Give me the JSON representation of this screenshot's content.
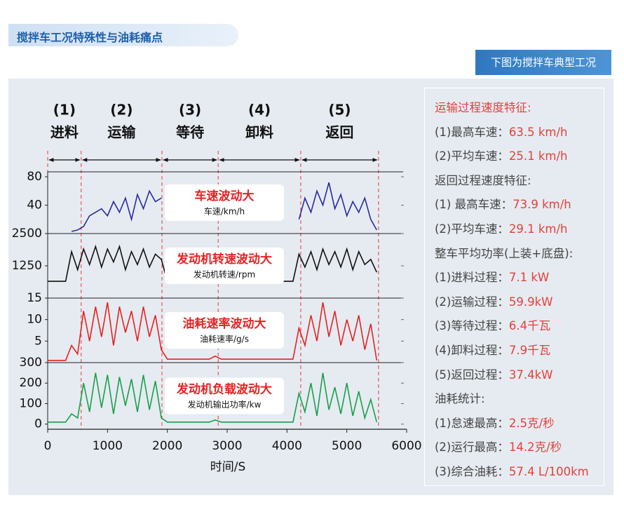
{
  "header": {
    "title": "搅拌车工况特殊性与油耗痛点",
    "banner": "下图为搅拌车典型工况"
  },
  "phases": [
    {
      "number": "(1)",
      "name": "进料"
    },
    {
      "number": "(2)",
      "name": "运输"
    },
    {
      "number": "(3)",
      "name": "等待"
    },
    {
      "number": "(4)",
      "name": "卸料"
    },
    {
      "number": "(5)",
      "name": "返回"
    }
  ],
  "phase_bounds": [
    0,
    560,
    1910,
    2850,
    4230,
    5530
  ],
  "chart_data": [
    {
      "type": "line",
      "title": "车速波动大",
      "subtitle": "车速/km/h",
      "color": "#2a2aa0",
      "xlim": [
        0,
        6000
      ],
      "ylim": [
        0,
        87
      ],
      "yticks": [
        40,
        80
      ],
      "x": [
        0,
        100,
        200,
        300,
        400,
        500,
        600,
        700,
        800,
        900,
        1000,
        1100,
        1200,
        1300,
        1400,
        1500,
        1600,
        1700,
        1800,
        1900,
        2000,
        2100,
        2200,
        2300,
        2400,
        2500,
        2600,
        2700,
        2800,
        2900,
        3000,
        3100,
        3200,
        3300,
        3400,
        3500,
        3600,
        3700,
        3800,
        3900,
        4000,
        4100,
        4200,
        4300,
        4400,
        4500,
        4600,
        4700,
        4800,
        4900,
        5000,
        5100,
        5200,
        5300,
        5400,
        5500
      ],
      "values": [
        null,
        null,
        null,
        null,
        3,
        5,
        10,
        25,
        30,
        35,
        25,
        45,
        30,
        50,
        20,
        55,
        35,
        60,
        45,
        50,
        null,
        null,
        null,
        null,
        null,
        null,
        null,
        null,
        null,
        null,
        null,
        null,
        null,
        null,
        null,
        null,
        null,
        null,
        null,
        null,
        null,
        null,
        20,
        50,
        30,
        60,
        40,
        72,
        35,
        55,
        25,
        45,
        30,
        50,
        20,
        5
      ]
    },
    {
      "type": "line",
      "title": "发动机转速波动大",
      "subtitle": "发动机转速/rpm",
      "color": "#111111",
      "xlim": [
        0,
        6000
      ],
      "ylim": [
        0,
        2500
      ],
      "yticks": [
        1250,
        2500
      ],
      "x": [
        0,
        100,
        200,
        300,
        400,
        500,
        600,
        700,
        800,
        900,
        1000,
        1100,
        1200,
        1300,
        1400,
        1500,
        1600,
        1700,
        1800,
        1900,
        2000,
        2100,
        2200,
        2300,
        2400,
        2500,
        2600,
        2700,
        2800,
        2900,
        3000,
        3100,
        3200,
        3300,
        3400,
        3500,
        3600,
        3700,
        3800,
        3900,
        4000,
        4100,
        4200,
        4300,
        4400,
        4500,
        4600,
        4700,
        4800,
        4900,
        5000,
        5100,
        5200,
        5300,
        5400,
        5500
      ],
      "values": [
        650,
        650,
        650,
        650,
        1800,
        1100,
        1900,
        1300,
        2000,
        1200,
        1900,
        1400,
        2000,
        1100,
        1800,
        1300,
        1900,
        1200,
        1700,
        1500,
        650,
        650,
        650,
        650,
        650,
        650,
        650,
        650,
        650,
        650,
        650,
        650,
        650,
        650,
        650,
        650,
        650,
        650,
        650,
        650,
        650,
        650,
        1700,
        1200,
        1800,
        1100,
        1900,
        1300,
        1800,
        1200,
        1900,
        1100,
        1800,
        1300,
        1500,
        1000
      ]
    },
    {
      "type": "line",
      "title": "油耗速率波动大",
      "subtitle": "油耗速率/g/s",
      "color": "#e52222",
      "xlim": [
        0,
        6000
      ],
      "ylim": [
        0,
        15
      ],
      "yticks": [
        5,
        10,
        15
      ],
      "x": [
        0,
        100,
        200,
        300,
        400,
        500,
        600,
        700,
        800,
        900,
        1000,
        1100,
        1200,
        1300,
        1400,
        1500,
        1600,
        1700,
        1800,
        1900,
        2000,
        2100,
        2200,
        2300,
        2400,
        2500,
        2600,
        2700,
        2800,
        2900,
        3000,
        3100,
        3200,
        3300,
        3400,
        3500,
        3600,
        3700,
        3800,
        3900,
        4000,
        4100,
        4200,
        4300,
        4400,
        4500,
        4600,
        4700,
        4800,
        4900,
        5000,
        5100,
        5200,
        5300,
        5400,
        5500
      ],
      "values": [
        0.5,
        0.5,
        0.5,
        0.5,
        4,
        2,
        12,
        5,
        13,
        6,
        14,
        4,
        13,
        7,
        12,
        5,
        13,
        6,
        11,
        3,
        0.8,
        0.8,
        0.8,
        0.8,
        0.8,
        0.8,
        0.8,
        0.8,
        1.5,
        0.8,
        0.8,
        0.8,
        0.8,
        0.8,
        0.8,
        0.8,
        0.8,
        0.8,
        0.8,
        0.8,
        0.8,
        0.8,
        8,
        4,
        11,
        5,
        14,
        6,
        12,
        4,
        10,
        5,
        11,
        3,
        9,
        0.5
      ]
    },
    {
      "type": "line",
      "title": "发动机负载波动大",
      "subtitle": "发动机输出功率/kw",
      "color": "#17a04a",
      "xlim": [
        0,
        6000
      ],
      "ylim": [
        -25,
        300
      ],
      "yticks": [
        0,
        100,
        200,
        300
      ],
      "xticks": [
        0,
        1000,
        2000,
        3000,
        4000,
        5000,
        6000
      ],
      "xlabel": "时间/S",
      "x": [
        0,
        100,
        200,
        300,
        400,
        500,
        600,
        700,
        800,
        900,
        1000,
        1100,
        1200,
        1300,
        1400,
        1500,
        1600,
        1700,
        1800,
        1900,
        2000,
        2100,
        2200,
        2300,
        2400,
        2500,
        2600,
        2700,
        2800,
        2900,
        3000,
        3100,
        3200,
        3300,
        3400,
        3500,
        3600,
        3700,
        3800,
        3900,
        4000,
        4100,
        4200,
        4300,
        4400,
        4500,
        4600,
        4700,
        4800,
        4900,
        5000,
        5100,
        5200,
        5300,
        5400,
        5500
      ],
      "values": [
        10,
        10,
        10,
        10,
        50,
        30,
        200,
        60,
        250,
        80,
        240,
        50,
        230,
        90,
        220,
        60,
        240,
        70,
        210,
        30,
        10,
        10,
        10,
        10,
        10,
        10,
        10,
        10,
        20,
        10,
        10,
        10,
        10,
        10,
        10,
        10,
        10,
        10,
        10,
        10,
        10,
        10,
        150,
        60,
        200,
        40,
        250,
        70,
        180,
        50,
        200,
        40,
        160,
        30,
        120,
        10
      ]
    }
  ],
  "summary": [
    {
      "heading": "运输过程速度特征:",
      "color": "#e5403a",
      "items": [
        {
          "label": "(1)最高车速：",
          "value": "63.5 km/h"
        },
        {
          "label": "(2)平均车速：",
          "value": "25.1 km/h"
        }
      ]
    },
    {
      "heading": "返回过程速度特征:",
      "items": [
        {
          "label": "(1) 最高车速：",
          "value": "73.9 km/h"
        },
        {
          "label": "(2)平均车速：",
          "value": "29.1 km/h"
        }
      ]
    },
    {
      "heading": "整车平均功率(上装+底盘):",
      "items": [
        {
          "label": "(1)进料过程：",
          "value": "7.1 kW"
        },
        {
          "label": "(2)运输过程：",
          "value": "59.9kW"
        },
        {
          "label": "(3)等待过程：",
          "value": "6.4千瓦"
        },
        {
          "label": "(4)卸料过程：",
          "value": "7.9千瓦"
        },
        {
          "label": "(5)返回过程：",
          "value": "37.4kW"
        }
      ]
    },
    {
      "heading": "油耗统计:",
      "items": [
        {
          "label": "(1)怠速最高：",
          "value": "2.5克/秒"
        },
        {
          "label": "(2)运行最高：",
          "value": "14.2克/秒"
        },
        {
          "label": "(3)综合油耗：",
          "value": "57.4 L/100km"
        }
      ]
    }
  ]
}
